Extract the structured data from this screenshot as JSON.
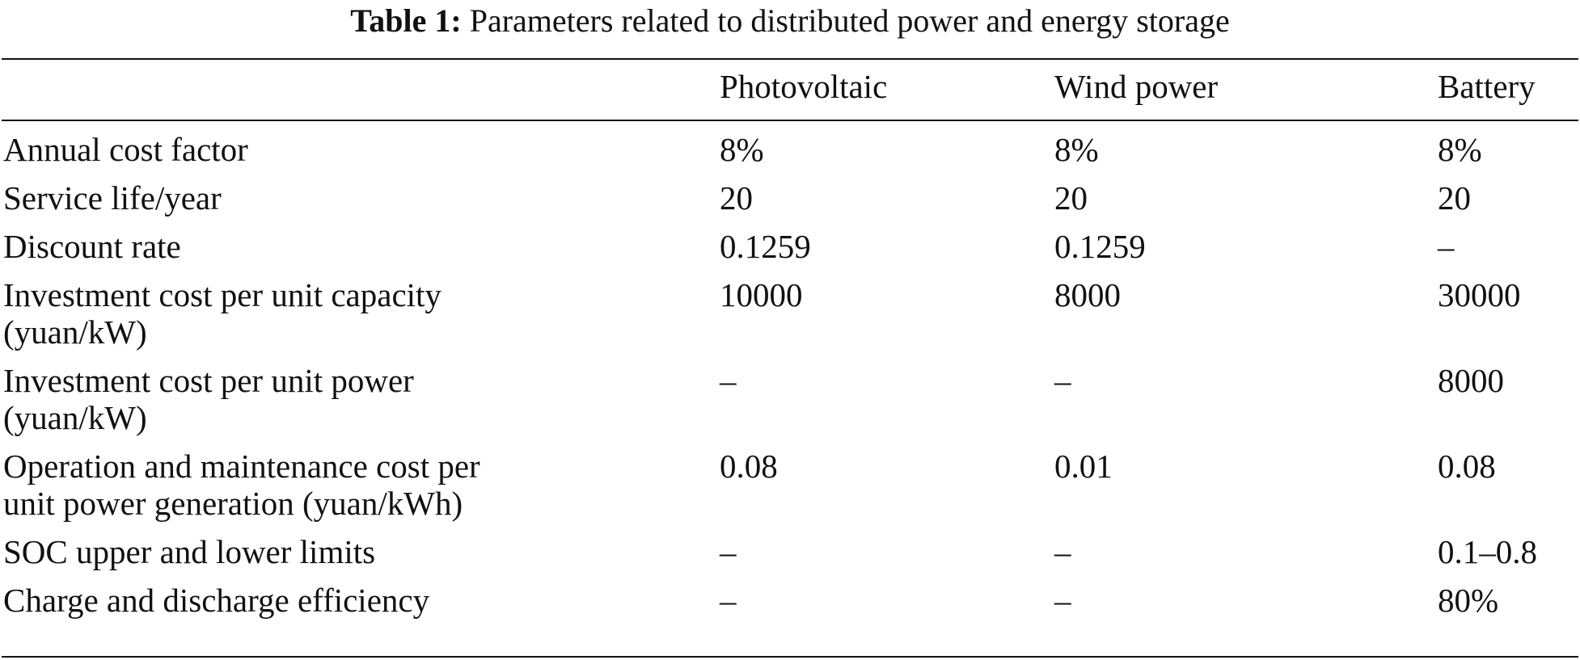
{
  "caption": {
    "label": "Table 1:",
    "text": "Parameters related to distributed power and energy storage"
  },
  "table": {
    "columns": [
      "",
      "Photovoltaic",
      "Wind power",
      "Battery"
    ],
    "rows": [
      {
        "label": [
          "Annual cost factor"
        ],
        "pv": "8%",
        "wind": "8%",
        "battery": "8%"
      },
      {
        "label": [
          "Service life/year"
        ],
        "pv": "20",
        "wind": "20",
        "battery": "20"
      },
      {
        "label": [
          "Discount rate"
        ],
        "pv": "0.1259",
        "wind": "0.1259",
        "battery": "–"
      },
      {
        "label": [
          "Investment cost per unit capacity",
          "(yuan/kW)"
        ],
        "pv": "10000",
        "wind": "8000",
        "battery": "30000"
      },
      {
        "label": [
          "Investment cost per unit power",
          "(yuan/kW)"
        ],
        "pv": "–",
        "wind": "–",
        "battery": "8000"
      },
      {
        "label": [
          "Operation and maintenance cost per",
          "unit power generation (yuan/kWh)"
        ],
        "pv": "0.08",
        "wind": "0.01",
        "battery": "0.08"
      },
      {
        "label": [
          "SOC upper and lower limits"
        ],
        "pv": "–",
        "wind": "–",
        "battery": "0.1–0.8"
      },
      {
        "label": [
          "Charge and discharge efficiency"
        ],
        "pv": "–",
        "wind": "–",
        "battery": "80%"
      }
    ]
  }
}
